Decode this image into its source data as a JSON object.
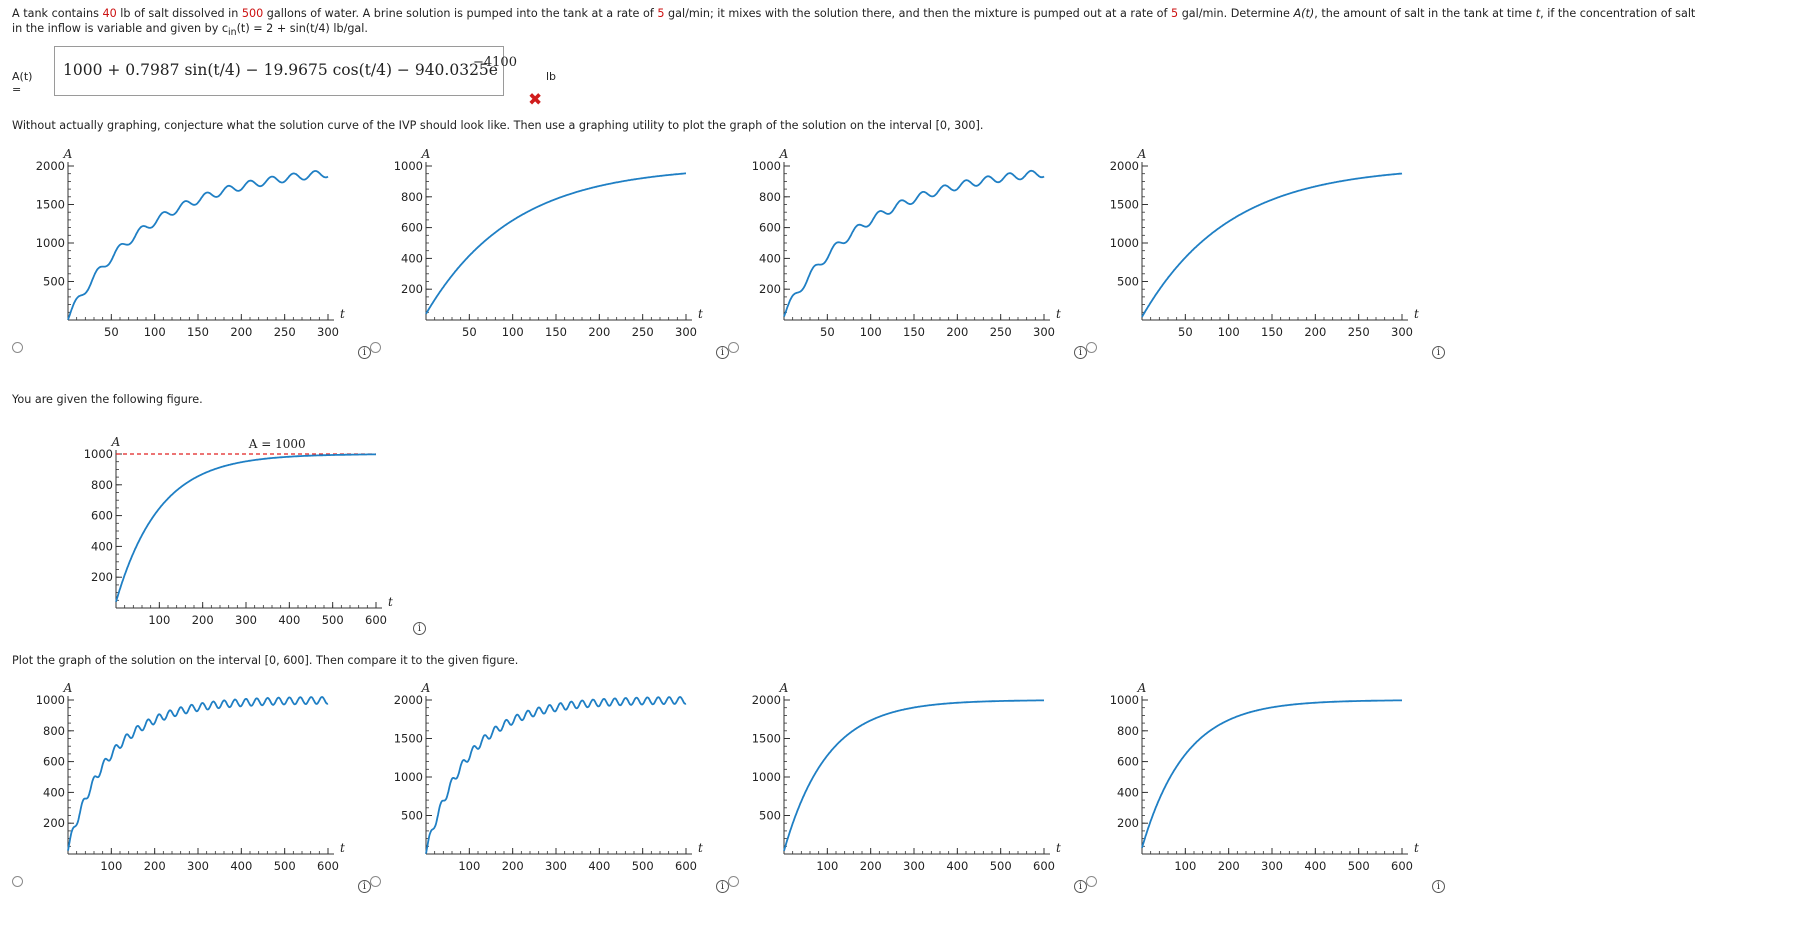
{
  "problem": {
    "p1": "A tank contains ",
    "salt": "40",
    "p2": " lb of salt dissolved in ",
    "gallons": "500",
    "p3": " gallons of water. A brine solution is pumped into the tank at a rate of ",
    "rate_in": "5",
    "p4": " gal/min; it mixes with the solution there, and then the mixture is pumped out at a rate of ",
    "rate_out": "5",
    "p5": " gal/min. Determine ",
    "at": "A(t)",
    "p6": ", the amount of salt in the tank at time ",
    "t": "t",
    "p7": ", if the concentration of salt",
    "line2_a": "in the inflow is variable and given by c",
    "line2_sub": "in",
    "line2_b": "(t) = 2 + sin(t/4) lb/gal."
  },
  "answer": {
    "label": "A(t) =",
    "expression": "1000 + 0.7987 sin(t/4) − 19.9675 cos(t/4) − 940.0325e",
    "exponent": "−4100",
    "unit": "lb",
    "status_mark": "✖"
  },
  "question1": "Without actually graphing, conjecture what the solution curve of the IVP should look like. Then use a graphing utility to plot the graph of the solution on the interval [0, 300].",
  "given_label": "You are given the following figure.",
  "question2": "Plot the graph of the solution on the interval [0, 600]. Then compare it to the given figure.",
  "info_glyph": "i",
  "axis_names": {
    "y": "A",
    "x": "t"
  },
  "colors": {
    "curve": "#1f7fc4",
    "asymptote": "#e02020",
    "emphasis": "#cc1111"
  },
  "set1": {
    "xticks": [
      50,
      100,
      150,
      200,
      250,
      300
    ],
    "xlim": [
      0,
      300
    ],
    "options": [
      {
        "yticks": [
          500,
          1000,
          1500,
          2000
        ],
        "ylim": [
          0,
          2000
        ],
        "curve": "wavy",
        "asymptote": 2000,
        "k": 0.01,
        "amp": 40,
        "y0": 40
      },
      {
        "yticks": [
          200,
          400,
          600,
          800,
          1000
        ],
        "ylim": [
          0,
          1000
        ],
        "curve": "smooth",
        "asymptote": 1000,
        "k": 0.01,
        "amp": 0,
        "y0": 40
      },
      {
        "yticks": [
          200,
          400,
          600,
          800,
          1000
        ],
        "ylim": [
          0,
          1000
        ],
        "curve": "wavy",
        "asymptote": 1000,
        "k": 0.01,
        "amp": 20,
        "y0": 40
      },
      {
        "yticks": [
          500,
          1000,
          1500,
          2000
        ],
        "ylim": [
          0,
          2000
        ],
        "curve": "smooth",
        "asymptote": 2000,
        "k": 0.01,
        "amp": 0,
        "y0": 40
      }
    ]
  },
  "given_figure": {
    "xticks": [
      100,
      200,
      300,
      400,
      500,
      600
    ],
    "xlim": [
      0,
      600
    ],
    "yticks": [
      200,
      400,
      600,
      800,
      1000
    ],
    "ylim": [
      0,
      1000
    ],
    "asymptote_label": "A = 1000",
    "asymptote": 1000,
    "k": 0.01,
    "y0": 40
  },
  "set2": {
    "xticks": [
      100,
      200,
      300,
      400,
      500,
      600
    ],
    "xlim": [
      0,
      600
    ],
    "options": [
      {
        "yticks": [
          200,
          400,
          600,
          800,
          1000
        ],
        "ylim": [
          0,
          1000
        ],
        "curve": "wavy",
        "asymptote": 1000,
        "k": 0.01,
        "amp": 20,
        "y0": 40
      },
      {
        "yticks": [
          500,
          1000,
          1500,
          2000
        ],
        "ylim": [
          0,
          2000
        ],
        "curve": "wavy",
        "asymptote": 2000,
        "k": 0.01,
        "amp": 40,
        "y0": 40
      },
      {
        "yticks": [
          500,
          1000,
          1500,
          2000
        ],
        "ylim": [
          0,
          2000
        ],
        "curve": "smooth",
        "asymptote": 2000,
        "k": 0.01,
        "amp": 0,
        "y0": 40
      },
      {
        "yticks": [
          200,
          400,
          600,
          800,
          1000
        ],
        "ylim": [
          0,
          1000
        ],
        "curve": "smooth",
        "asymptote": 1000,
        "k": 0.01,
        "amp": 0,
        "y0": 40
      }
    ]
  }
}
